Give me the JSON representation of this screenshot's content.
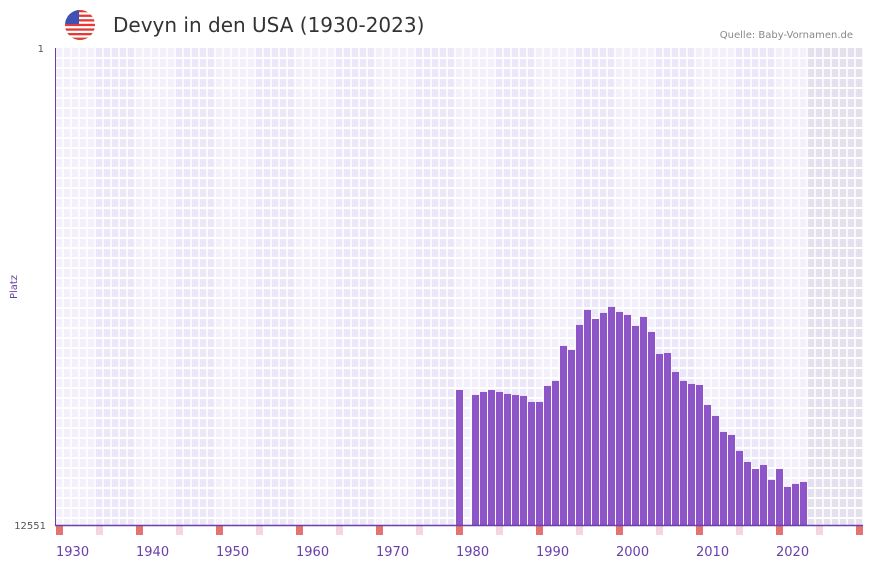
{
  "header": {
    "title": "Devyn in den USA (1930-2023)",
    "source": "Quelle: Baby-Vornamen.de",
    "flag_icon": "us-flag-icon"
  },
  "colors": {
    "bar": "#8e55c8",
    "cell_a": "#f3f0fb",
    "cell_b": "#ece7f8",
    "future": "#e4e0ee",
    "decade_marker": "#e57373",
    "half_decade_marker": "#f5d6df",
    "axis": "#6a3fa8"
  },
  "chart_data": {
    "type": "bar",
    "title": "Devyn in den USA (1930-2023)",
    "xlabel": "",
    "ylabel": "Platz",
    "xlim": [
      1930,
      2030
    ],
    "ylim": [
      12551,
      1
    ],
    "y_ticks": [
      "1",
      "12551"
    ],
    "x_ticks": [
      "1930",
      "1940",
      "1950",
      "1960",
      "1970",
      "1980",
      "1990",
      "2000",
      "2010",
      "2020"
    ],
    "data_end_year": 2023,
    "years": [
      1980,
      1982,
      1983,
      1984,
      1985,
      1986,
      1987,
      1988,
      1989,
      1990,
      1991,
      1992,
      1993,
      1994,
      1995,
      1996,
      1997,
      1998,
      1999,
      2000,
      2001,
      2002,
      2003,
      2004,
      2005,
      2006,
      2007,
      2008,
      2009,
      2010,
      2011,
      2012,
      2013,
      2014,
      2015,
      2016,
      2017,
      2018,
      2019,
      2020,
      2021,
      2022,
      2023
    ],
    "values": [
      8999,
      9130,
      9051,
      8999,
      9051,
      9103,
      9130,
      9156,
      9314,
      9314,
      8893,
      8761,
      7840,
      7946,
      7288,
      6893,
      7130,
      6972,
      6814,
      6946,
      7025,
      7314,
      7077,
      7472,
      8051,
      8025,
      8525,
      8761,
      8840,
      8867,
      9393,
      9682,
      10103,
      10182,
      10603,
      10893,
      11077,
      10972,
      11366,
      11077,
      11550,
      11471,
      11419
    ]
  }
}
